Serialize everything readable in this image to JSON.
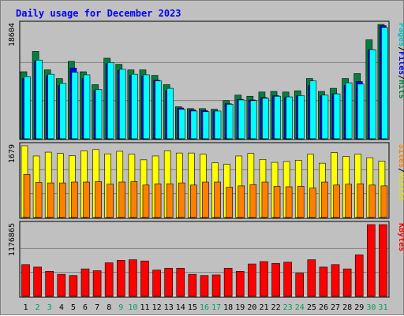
{
  "chart_data": {
    "type": "bar",
    "title": "Daily usage for December 2023",
    "categories": [
      "1",
      "2",
      "3",
      "4",
      "5",
      "6",
      "7",
      "8",
      "9",
      "10",
      "11",
      "12",
      "13",
      "14",
      "15",
      "16",
      "17",
      "18",
      "19",
      "20",
      "21",
      "22",
      "23",
      "24",
      "25",
      "26",
      "27",
      "28",
      "29",
      "30",
      "31"
    ],
    "weekend_days": [
      "2",
      "3",
      "9",
      "10",
      "16",
      "17",
      "23",
      "24",
      "30",
      "31"
    ],
    "colors": {
      "hits": "#008040",
      "files": "#0000ff",
      "pages": "#00ffff",
      "visits": "#ffff00",
      "sites": "#ff8000",
      "kbytes": "#ff0000",
      "title": "#0000ff",
      "weekday_label": "#000000",
      "weekend_label": "#00a060",
      "panel_bg": "#c0c0c0"
    },
    "panels": [
      {
        "id": "hits-files-pages",
        "max_label": "18604",
        "ylim": [
          0,
          18604
        ],
        "label_parts": [
          {
            "text": "Pages",
            "color": "#00c0c0"
          },
          {
            "text": "/",
            "color": "#000000"
          },
          {
            "text": "Files",
            "color": "#0000ff"
          },
          {
            "text": "/",
            "color": "#000000"
          },
          {
            "text": "Hits",
            "color": "#008040"
          }
        ],
        "series": [
          {
            "name": "Hits",
            "color": "#008040",
            "values": [
              10900,
              14200,
              11200,
              9800,
              12600,
              10900,
              8800,
              13100,
              12100,
              11200,
              11200,
              10300,
              8800,
              5200,
              4900,
              4900,
              4800,
              6200,
              7100,
              6900,
              7600,
              7700,
              7600,
              7800,
              9800,
              7700,
              8200,
              9800,
              10600,
              16100,
              18604
            ]
          },
          {
            "name": "Files",
            "color": "#0000ff",
            "values": [
              9800,
              12600,
              10200,
              8700,
              11500,
              9800,
              7800,
              12200,
              11100,
              10300,
              10200,
              9500,
              7800,
              5000,
              4700,
              4600,
              4500,
              5700,
              6400,
              6300,
              6700,
              7000,
              6700,
              7000,
              8700,
              7000,
              7300,
              8700,
              9300,
              14500,
              18400
            ]
          },
          {
            "name": "Pages",
            "color": "#00ffff",
            "values": [
              10100,
              12800,
              10500,
              9000,
              10800,
              10400,
              8000,
              12400,
              11300,
              10500,
              10400,
              9400,
              8200,
              4800,
              4500,
              4400,
              4500,
              5600,
              6300,
              6200,
              6600,
              6900,
              6800,
              7000,
              9400,
              7100,
              7300,
              9100,
              8900,
              14500,
              18100
            ]
          }
        ]
      },
      {
        "id": "visits-sites",
        "max_label": "1679",
        "ylim": [
          0,
          1679
        ],
        "label_parts": [
          {
            "text": "Sites",
            "color": "#ff8000"
          },
          {
            "text": "/",
            "color": "#000000"
          },
          {
            "text": "Visits",
            "color": "#e0e000"
          }
        ],
        "series": [
          {
            "name": "Visits",
            "color": "#ffff00",
            "values": [
              1679,
              1440,
              1530,
              1500,
              1450,
              1560,
              1590,
              1490,
              1550,
              1480,
              1350,
              1440,
              1560,
              1510,
              1510,
              1480,
              1280,
              1250,
              1440,
              1500,
              1360,
              1290,
              1310,
              1340,
              1480,
              1270,
              1520,
              1430,
              1480,
              1400,
              1320
            ]
          },
          {
            "name": "Sites",
            "color": "#ff8000",
            "values": [
              1010,
              820,
              810,
              810,
              830,
              830,
              840,
              780,
              830,
              840,
              760,
              790,
              790,
              810,
              760,
              830,
              830,
              710,
              740,
              770,
              830,
              730,
              720,
              730,
              690,
              830,
              760,
              780,
              790,
              760,
              740
            ]
          }
        ]
      },
      {
        "id": "kbytes",
        "max_label": "1176865",
        "ylim": [
          0,
          1176865
        ],
        "label_parts": [
          {
            "text": "KBytes",
            "color": "#ff0000"
          }
        ],
        "series": [
          {
            "name": "KBytes",
            "color": "#ff0000",
            "values": [
              520000,
              480000,
              410000,
              360000,
              340000,
              450000,
              420000,
              550000,
              590000,
              600000,
              580000,
              430000,
              460000,
              460000,
              360000,
              340000,
              350000,
              460000,
              410000,
              530000,
              570000,
              540000,
              560000,
              380000,
              600000,
              480000,
              520000,
              450000,
              680000,
              1176865,
              1176865
            ]
          }
        ]
      }
    ]
  }
}
